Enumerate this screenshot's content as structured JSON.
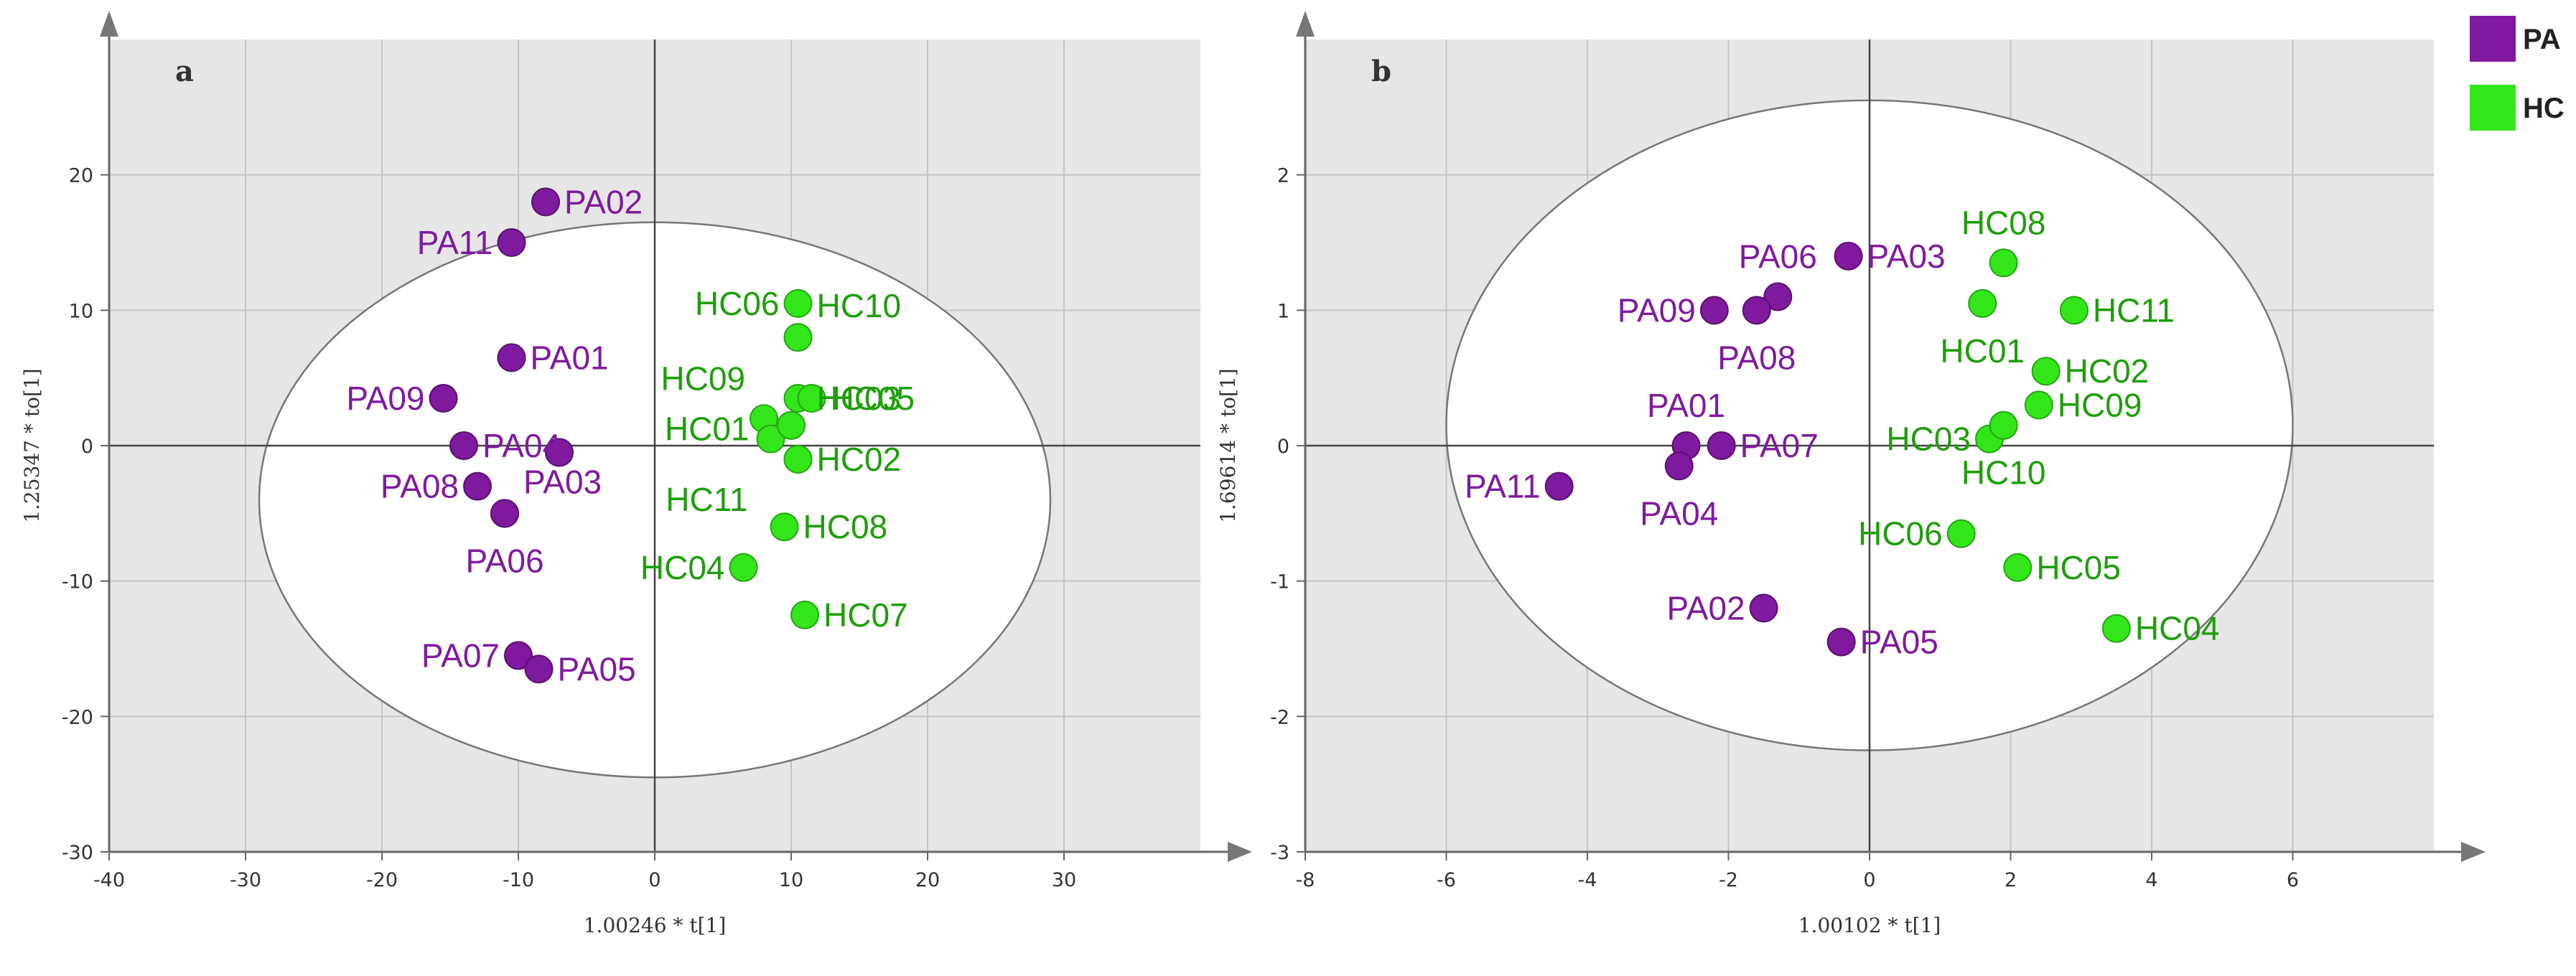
{
  "colors": {
    "PA": "#7f1a9e",
    "HC": "#33e61a",
    "HC_label": "#1e9e0a"
  },
  "legend": [
    {
      "key": "PA",
      "label": "PA"
    },
    {
      "key": "HC",
      "label": "HC"
    }
  ],
  "chart_data": [
    {
      "type": "scatter",
      "panel_label": "a",
      "xlabel": "1.00246 * t[1]",
      "ylabel": "1.25347 * to[1]",
      "xlim": [
        -40,
        40
      ],
      "ylim": [
        -30,
        30
      ],
      "xticks": [
        -40,
        -30,
        -20,
        -10,
        0,
        10,
        20,
        30
      ],
      "yticks": [
        -30,
        -20,
        -10,
        0,
        10,
        20
      ],
      "ellipse": {
        "cx": 0,
        "cy": -4,
        "rx": 29,
        "ry": 20.5
      },
      "points": [
        {
          "label": "PA02",
          "group": "PA",
          "x": -8,
          "y": 18,
          "pos": "right"
        },
        {
          "label": "PA11",
          "group": "PA",
          "x": -10.5,
          "y": 15,
          "pos": "left"
        },
        {
          "label": "PA01",
          "group": "PA",
          "x": -10.5,
          "y": 6.5,
          "pos": "right"
        },
        {
          "label": "PA09",
          "group": "PA",
          "x": -15.5,
          "y": 3.5,
          "pos": "left"
        },
        {
          "label": "PA04",
          "group": "PA",
          "x": -14,
          "y": 0,
          "pos": "right"
        },
        {
          "label": "",
          "group": "PA",
          "x": -7,
          "y": -0.5,
          "pos": "right"
        },
        {
          "label": "PA08",
          "group": "PA",
          "x": -13,
          "y": -3,
          "pos": "left"
        },
        {
          "label": "PA03",
          "group": "PA",
          "x": -11,
          "y": -5,
          "pos": "right-up"
        },
        {
          "label": "PA06",
          "group": "PA",
          "x": -11,
          "y": -5,
          "pos": "below"
        },
        {
          "label": "PA07",
          "group": "PA",
          "x": -10,
          "y": -15.5,
          "pos": "left"
        },
        {
          "label": "PA05",
          "group": "PA",
          "x": -8.5,
          "y": -16.5,
          "pos": "right"
        },
        {
          "label": "HC06",
          "group": "HC",
          "x": 10.5,
          "y": 10.5,
          "pos": "left"
        },
        {
          "label": "HC10",
          "group": "HC",
          "x": 10.5,
          "y": 8,
          "pos": "right-up"
        },
        {
          "label": "HC09",
          "group": "HC",
          "x": 8,
          "y": 2,
          "pos": "left-up"
        },
        {
          "label": "HC01",
          "group": "HC",
          "x": 8.5,
          "y": 0.5,
          "pos": "left-up2"
        },
        {
          "label": "",
          "group": "HC",
          "x": 10,
          "y": 1.5,
          "pos": "right"
        },
        {
          "label": "HC03",
          "group": "HC",
          "x": 10.5,
          "y": 3.5,
          "pos": "right"
        },
        {
          "label": "HC05",
          "group": "HC",
          "x": 11.5,
          "y": 3.5,
          "pos": "right"
        },
        {
          "label": "HC02",
          "group": "HC",
          "x": 10.5,
          "y": -1,
          "pos": "right"
        },
        {
          "label": "HC11",
          "group": "HC",
          "x": 10.5,
          "y": -1,
          "pos": "left-down"
        },
        {
          "label": "HC08",
          "group": "HC",
          "x": 9.5,
          "y": -6,
          "pos": "right"
        },
        {
          "label": "HC04",
          "group": "HC",
          "x": 6.5,
          "y": -9,
          "pos": "left"
        },
        {
          "label": "HC07",
          "group": "HC",
          "x": 11,
          "y": -12.5,
          "pos": "right"
        }
      ]
    },
    {
      "type": "scatter",
      "panel_label": "b",
      "xlabel": "1.00102 * t[1]",
      "ylabel": "1.69614 * to[1]",
      "xlim": [
        -8,
        8
      ],
      "ylim": [
        -3,
        3
      ],
      "xticks": [
        -8,
        -6,
        -4,
        -2,
        0,
        2,
        4,
        6
      ],
      "yticks": [
        -3,
        -2,
        -1,
        0,
        1,
        2
      ],
      "ellipse": {
        "cx": 0,
        "cy": 0.15,
        "rx": 6,
        "ry": 2.4
      },
      "points": [
        {
          "label": "PA03",
          "group": "PA",
          "x": -0.3,
          "y": 1.4,
          "pos": "right"
        },
        {
          "label": "PA06",
          "group": "PA",
          "x": -1.3,
          "y": 1.1,
          "pos": "up"
        },
        {
          "label": "PA09",
          "group": "PA",
          "x": -2.2,
          "y": 1,
          "pos": "left"
        },
        {
          "label": "PA08",
          "group": "PA",
          "x": -1.6,
          "y": 1,
          "pos": "below"
        },
        {
          "label": "PA01",
          "group": "PA",
          "x": -2.6,
          "y": 0,
          "pos": "up"
        },
        {
          "label": "PA07",
          "group": "PA",
          "x": -2.1,
          "y": 0,
          "pos": "right"
        },
        {
          "label": "PA04",
          "group": "PA",
          "x": -2.7,
          "y": -0.15,
          "pos": "below"
        },
        {
          "label": "PA11",
          "group": "PA",
          "x": -4.4,
          "y": -0.3,
          "pos": "left"
        },
        {
          "label": "PA02",
          "group": "PA",
          "x": -1.5,
          "y": -1.2,
          "pos": "left"
        },
        {
          "label": "PA05",
          "group": "PA",
          "x": -0.4,
          "y": -1.45,
          "pos": "right"
        },
        {
          "label": "HC08",
          "group": "HC",
          "x": 1.9,
          "y": 1.35,
          "pos": "up"
        },
        {
          "label": "HC01",
          "group": "HC",
          "x": 1.6,
          "y": 1.05,
          "pos": "below"
        },
        {
          "label": "HC11",
          "group": "HC",
          "x": 2.9,
          "y": 1,
          "pos": "right"
        },
        {
          "label": "HC02",
          "group": "HC",
          "x": 2.5,
          "y": 0.55,
          "pos": "right"
        },
        {
          "label": "HC09",
          "group": "HC",
          "x": 2.4,
          "y": 0.3,
          "pos": "right"
        },
        {
          "label": "HC03",
          "group": "HC",
          "x": 1.7,
          "y": 0.05,
          "pos": "left"
        },
        {
          "label": "HC10",
          "group": "HC",
          "x": 1.9,
          "y": 0.15,
          "pos": "below"
        },
        {
          "label": "HC06",
          "group": "HC",
          "x": 1.3,
          "y": -0.65,
          "pos": "left"
        },
        {
          "label": "HC05",
          "group": "HC",
          "x": 2.1,
          "y": -0.9,
          "pos": "right"
        },
        {
          "label": "HC04",
          "group": "HC",
          "x": 3.5,
          "y": -1.35,
          "pos": "right"
        }
      ]
    }
  ]
}
